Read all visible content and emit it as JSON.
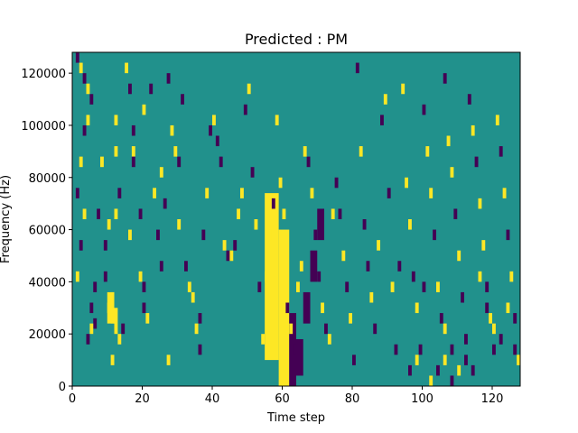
{
  "chart_data": {
    "type": "heatmap",
    "title": "Predicted : PM",
    "xlabel": "Time step",
    "ylabel": "Frequency (Hz)",
    "xlim": [
      0,
      128
    ],
    "ylim": [
      0,
      128000
    ],
    "x_ticks": [
      0,
      20,
      40,
      60,
      80,
      100,
      120
    ],
    "y_ticks": [
      0,
      20000,
      40000,
      60000,
      80000,
      100000,
      120000
    ],
    "grid": false,
    "colormap": "viridis",
    "levels": {
      "low": -1,
      "mid": 0,
      "high": 1
    },
    "colors": {
      "low": "#440154",
      "mid": "#21918c",
      "high": "#fde725"
    },
    "background_value": 0,
    "cells": [
      [
        1,
        124000,
        -1
      ],
      [
        2,
        120000,
        1
      ],
      [
        3,
        116000,
        -1
      ],
      [
        4,
        112000,
        1
      ],
      [
        5,
        108000,
        -1
      ],
      [
        4,
        100000,
        1
      ],
      [
        3,
        96000,
        -1
      ],
      [
        2,
        84000,
        1
      ],
      [
        1,
        72000,
        -1
      ],
      [
        3,
        64000,
        1
      ],
      [
        2,
        52000,
        -1
      ],
      [
        1,
        40000,
        1
      ],
      [
        6,
        36000,
        -1
      ],
      [
        5,
        28000,
        -1
      ],
      [
        6,
        22000,
        -1
      ],
      [
        5,
        20000,
        1
      ],
      [
        4,
        16000,
        -1
      ],
      [
        7,
        64000,
        -1
      ],
      [
        8,
        84000,
        1
      ],
      [
        9,
        52000,
        -1
      ],
      [
        10,
        28000,
        1
      ],
      [
        11,
        24000,
        1
      ],
      [
        11,
        32000,
        1
      ],
      [
        11,
        8000,
        1
      ],
      [
        10,
        60000,
        1
      ],
      [
        9,
        40000,
        -1
      ],
      [
        12,
        100000,
        1
      ],
      [
        12,
        88000,
        1
      ],
      [
        13,
        72000,
        -1
      ],
      [
        12,
        64000,
        1
      ],
      [
        13,
        16000,
        1
      ],
      [
        14,
        20000,
        -1
      ],
      [
        15,
        120000,
        1
      ],
      [
        16,
        112000,
        -1
      ],
      [
        17,
        96000,
        -1
      ],
      [
        17,
        88000,
        1
      ],
      [
        16,
        56000,
        1
      ],
      [
        17,
        84000,
        -1
      ],
      [
        19,
        64000,
        -1
      ],
      [
        20,
        104000,
        1
      ],
      [
        19,
        40000,
        1
      ],
      [
        20,
        36000,
        -1
      ],
      [
        20,
        28000,
        -1
      ],
      [
        21,
        24000,
        1
      ],
      [
        22,
        112000,
        -1
      ],
      [
        23,
        72000,
        1
      ],
      [
        24,
        56000,
        -1
      ],
      [
        25,
        44000,
        -1
      ],
      [
        25,
        80000,
        1
      ],
      [
        26,
        68000,
        -1
      ],
      [
        27,
        8000,
        1
      ],
      [
        27,
        116000,
        -1
      ],
      [
        28,
        96000,
        1
      ],
      [
        29,
        88000,
        1
      ],
      [
        30,
        84000,
        -1
      ],
      [
        30,
        60000,
        1
      ],
      [
        31,
        108000,
        -1
      ],
      [
        32,
        44000,
        -1
      ],
      [
        33,
        36000,
        1
      ],
      [
        34,
        32000,
        1
      ],
      [
        35,
        20000,
        1
      ],
      [
        36,
        24000,
        -1
      ],
      [
        36,
        12000,
        -1
      ],
      [
        37,
        56000,
        -1
      ],
      [
        38,
        72000,
        1
      ],
      [
        39,
        96000,
        -1
      ],
      [
        40,
        100000,
        1
      ],
      [
        41,
        92000,
        -1
      ],
      [
        42,
        84000,
        -1
      ],
      [
        43,
        52000,
        1
      ],
      [
        44,
        48000,
        -1
      ],
      [
        45,
        48000,
        1
      ],
      [
        46,
        52000,
        -1
      ],
      [
        47,
        64000,
        1
      ],
      [
        48,
        72000,
        1
      ],
      [
        49,
        104000,
        -1
      ],
      [
        50,
        112000,
        1
      ],
      [
        51,
        80000,
        -1
      ],
      [
        52,
        60000,
        1
      ],
      [
        53,
        36000,
        -1
      ],
      [
        54,
        16000,
        1
      ],
      [
        55,
        40000,
        1
      ],
      [
        56,
        56000,
        1
      ],
      [
        57,
        68000,
        -1
      ],
      [
        58,
        100000,
        1
      ],
      [
        59,
        76000,
        1
      ],
      [
        60,
        64000,
        1
      ],
      [
        61,
        28000,
        -1
      ],
      [
        62,
        20000,
        1
      ],
      [
        63,
        12000,
        -1
      ],
      [
        64,
        36000,
        1
      ],
      [
        65,
        44000,
        1
      ],
      [
        66,
        88000,
        1
      ],
      [
        67,
        84000,
        -1
      ],
      [
        68,
        72000,
        1
      ],
      [
        69,
        56000,
        -1
      ],
      [
        70,
        40000,
        -1
      ],
      [
        71,
        28000,
        1
      ],
      [
        72,
        20000,
        -1
      ],
      [
        73,
        16000,
        1
      ],
      [
        74,
        64000,
        1
      ],
      [
        75,
        76000,
        -1
      ],
      [
        76,
        64000,
        -1
      ],
      [
        77,
        48000,
        1
      ],
      [
        78,
        36000,
        -1
      ],
      [
        79,
        24000,
        1
      ],
      [
        80,
        8000,
        -1
      ],
      [
        81,
        120000,
        -1
      ],
      [
        82,
        88000,
        1
      ],
      [
        83,
        60000,
        -1
      ],
      [
        84,
        44000,
        -1
      ],
      [
        85,
        32000,
        1
      ],
      [
        86,
        20000,
        -1
      ],
      [
        87,
        52000,
        1
      ],
      [
        88,
        100000,
        -1
      ],
      [
        89,
        108000,
        1
      ],
      [
        90,
        72000,
        -1
      ],
      [
        91,
        36000,
        1
      ],
      [
        92,
        12000,
        -1
      ],
      [
        93,
        44000,
        -1
      ],
      [
        94,
        112000,
        1
      ],
      [
        95,
        76000,
        1
      ],
      [
        96,
        60000,
        1
      ],
      [
        97,
        40000,
        -1
      ],
      [
        98,
        28000,
        1
      ],
      [
        99,
        12000,
        -1
      ],
      [
        100,
        104000,
        -1
      ],
      [
        101,
        88000,
        1
      ],
      [
        102,
        72000,
        1
      ],
      [
        103,
        56000,
        -1
      ],
      [
        104,
        36000,
        1
      ],
      [
        105,
        24000,
        -1
      ],
      [
        106,
        116000,
        -1
      ],
      [
        107,
        92000,
        1
      ],
      [
        108,
        80000,
        1
      ],
      [
        109,
        64000,
        -1
      ],
      [
        110,
        48000,
        1
      ],
      [
        111,
        32000,
        -1
      ],
      [
        112,
        16000,
        -1
      ],
      [
        113,
        108000,
        -1
      ],
      [
        114,
        96000,
        1
      ],
      [
        115,
        84000,
        -1
      ],
      [
        116,
        68000,
        1
      ],
      [
        117,
        52000,
        1
      ],
      [
        118,
        36000,
        -1
      ],
      [
        119,
        24000,
        1
      ],
      [
        120,
        12000,
        -1
      ],
      [
        121,
        100000,
        1
      ],
      [
        122,
        88000,
        -1
      ],
      [
        123,
        72000,
        1
      ],
      [
        124,
        56000,
        -1
      ],
      [
        125,
        40000,
        1
      ],
      [
        126,
        24000,
        -1
      ],
      [
        127,
        8000,
        1
      ],
      [
        100,
        36000,
        -1
      ],
      [
        106,
        20000,
        1
      ],
      [
        108,
        12000,
        -1
      ],
      [
        110,
        4000,
        1
      ],
      [
        112,
        8000,
        -1
      ],
      [
        114,
        4000,
        -1
      ],
      [
        116,
        40000,
        1
      ],
      [
        118,
        28000,
        -1
      ],
      [
        120,
        20000,
        1
      ],
      [
        122,
        16000,
        -1
      ],
      [
        124,
        28000,
        1
      ],
      [
        126,
        12000,
        -1
      ],
      [
        96,
        4000,
        -1
      ],
      [
        98,
        8000,
        1
      ],
      [
        102,
        0,
        1
      ],
      [
        104,
        4000,
        -1
      ],
      [
        106,
        8000,
        1
      ],
      [
        108,
        0,
        -1
      ]
    ],
    "column_bands": [
      {
        "x": [
          55,
          59
        ],
        "from": 10000,
        "to": 74000,
        "value": 1
      },
      {
        "x": [
          59,
          62
        ],
        "from": 0,
        "to": 60000,
        "value": 1
      },
      {
        "x": [
          62,
          64
        ],
        "from": 0,
        "to": 28000,
        "value": -1
      },
      {
        "x": [
          10,
          12
        ],
        "from": 24000,
        "to": 36000,
        "value": 1
      },
      {
        "x": [
          12,
          13
        ],
        "from": 20000,
        "to": 30000,
        "value": 1
      },
      {
        "x": [
          64,
          66
        ],
        "from": 4000,
        "to": 18000,
        "value": -1
      },
      {
        "x": [
          66,
          68
        ],
        "from": 24000,
        "to": 36000,
        "value": -1
      },
      {
        "x": [
          68,
          70
        ],
        "from": 40000,
        "to": 52000,
        "value": -1
      },
      {
        "x": [
          70,
          72
        ],
        "from": 56000,
        "to": 68000,
        "value": -1
      }
    ]
  }
}
